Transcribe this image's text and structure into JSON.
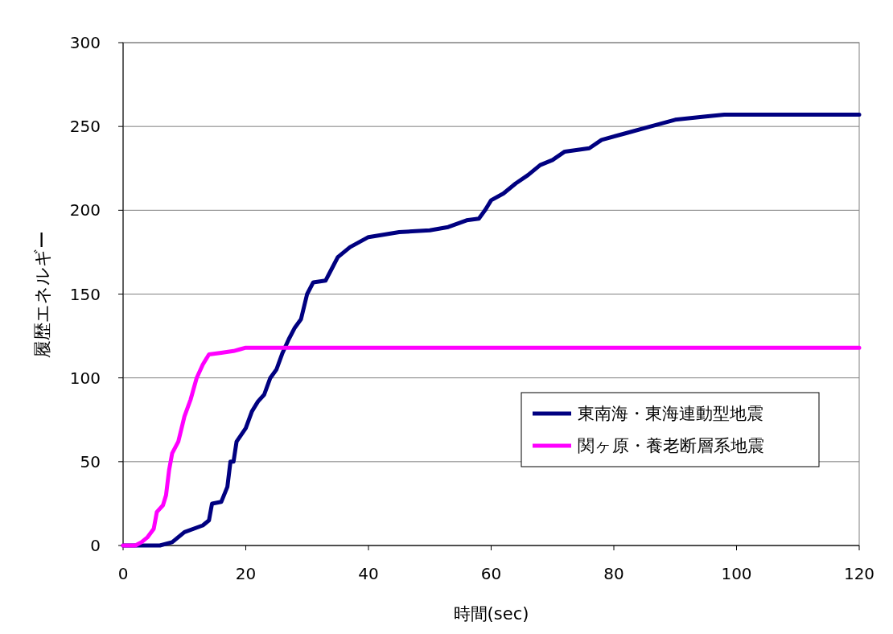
{
  "chart_data": {
    "type": "line",
    "xlabel": "時間(sec)",
    "ylabel": "履歴エネルギー",
    "xlim": [
      0,
      120
    ],
    "xticks": [
      0,
      20,
      40,
      60,
      80,
      100,
      120
    ],
    "ylim": [
      0,
      300
    ],
    "yticks": [
      0,
      50,
      100,
      150,
      200,
      250,
      300
    ],
    "grid": "y",
    "legend": "right",
    "marker": "none",
    "line_style": "solid",
    "series": [
      {
        "name": "東南海・東海連動型地震",
        "color": "#000080",
        "x": [
          0,
          6,
          8,
          10,
          13,
          14,
          14.5,
          16,
          17,
          17.5,
          18,
          18.5,
          20,
          21,
          22,
          23,
          24,
          25,
          26,
          27,
          28,
          29,
          30,
          31,
          33,
          34,
          35,
          37,
          40,
          45,
          50,
          53,
          56,
          58,
          59,
          60,
          62,
          64,
          66,
          68,
          70,
          72,
          76,
          78,
          82,
          86,
          90,
          95,
          98,
          120
        ],
        "values": [
          0,
          0,
          2,
          8,
          12,
          15,
          25,
          26,
          35,
          50,
          50,
          62,
          70,
          80,
          86,
          90,
          100,
          105,
          115,
          123,
          130,
          135,
          150,
          157,
          158,
          165,
          172,
          178,
          184,
          187,
          188,
          190,
          194,
          195,
          200,
          206,
          210,
          216,
          221,
          227,
          230,
          235,
          237,
          242,
          246,
          250,
          254,
          256,
          257,
          257
        ]
      },
      {
        "name": "関ヶ原・養老断層系地震",
        "color": "#ff00ff",
        "x": [
          0,
          2,
          3,
          4,
          5,
          5.5,
          6.5,
          7,
          7.5,
          8,
          9,
          10,
          11,
          12,
          13,
          14,
          16,
          18,
          19,
          20,
          120
        ],
        "values": [
          0,
          0,
          2,
          5,
          10,
          20,
          24,
          30,
          45,
          55,
          62,
          77,
          87,
          100,
          108,
          114,
          115,
          116,
          117,
          118,
          118
        ]
      }
    ]
  }
}
